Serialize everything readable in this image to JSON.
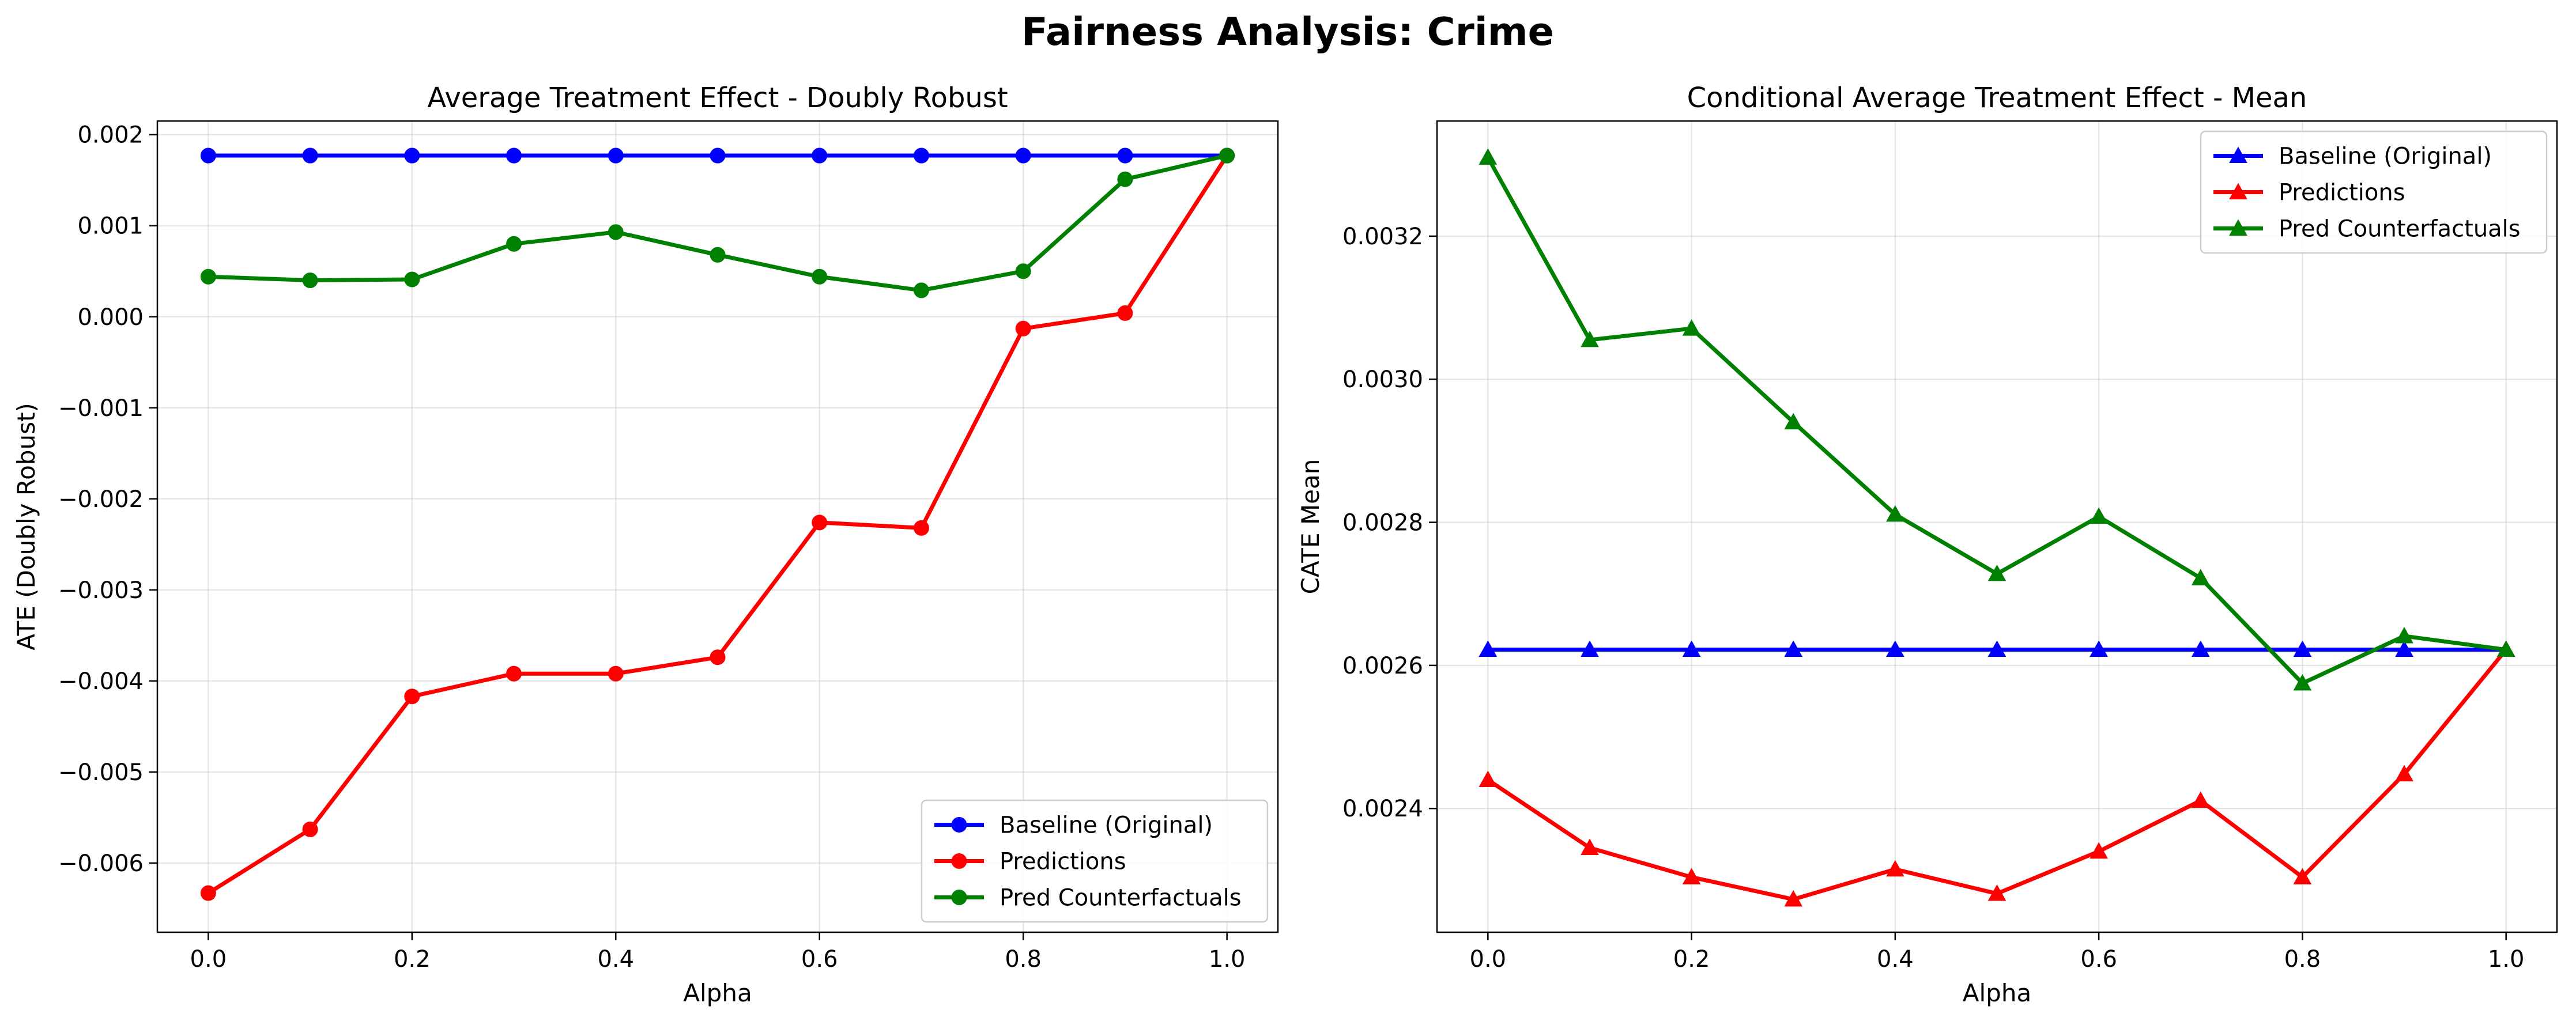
{
  "figure": {
    "title": "Fairness Analysis: Crime"
  },
  "chart_data": [
    {
      "type": "line",
      "title": "Average Treatment Effect - Doubly Robust",
      "xlabel": "Alpha",
      "ylabel": "ATE (Doubly Robust)",
      "x": [
        0.0,
        0.1,
        0.2,
        0.3,
        0.4,
        0.5,
        0.6,
        0.7,
        0.8,
        0.9,
        1.0
      ],
      "xlim": [
        -0.05,
        1.05
      ],
      "ylim": [
        -0.00676,
        0.00215
      ],
      "xticks": [
        0.0,
        0.2,
        0.4,
        0.6,
        0.8,
        1.0
      ],
      "xtick_labels": [
        "0.0",
        "0.2",
        "0.4",
        "0.6",
        "0.8",
        "1.0"
      ],
      "yticks": [
        -0.006,
        -0.005,
        -0.004,
        -0.003,
        -0.002,
        -0.001,
        0.0,
        0.001,
        0.002
      ],
      "ytick_labels": [
        "−0.006",
        "−0.005",
        "−0.004",
        "−0.003",
        "−0.002",
        "−0.001",
        "0.000",
        "0.001",
        "0.002"
      ],
      "grid": true,
      "marker": "circle",
      "legend_position": "lower-right",
      "series": [
        {
          "name": "Baseline (Original)",
          "color": "#0000ff",
          "values": [
            0.00177,
            0.00177,
            0.00177,
            0.00177,
            0.00177,
            0.00177,
            0.00177,
            0.00177,
            0.00177,
            0.00177,
            0.00177
          ]
        },
        {
          "name": "Predictions",
          "color": "#ff0000",
          "values": [
            -0.00633,
            -0.00563,
            -0.00417,
            -0.00392,
            -0.00392,
            -0.00374,
            -0.00226,
            -0.00232,
            -0.00013,
            4e-05,
            0.00177
          ]
        },
        {
          "name": "Pred Counterfactuals",
          "color": "#008000",
          "values": [
            0.00044,
            0.0004,
            0.00041,
            0.0008,
            0.00093,
            0.00068,
            0.00044,
            0.00029,
            0.0005,
            0.00151,
            0.00177
          ]
        }
      ]
    },
    {
      "type": "line",
      "title": "Conditional Average Treatment Effect - Mean",
      "xlabel": "Alpha",
      "ylabel": "CATE Mean",
      "x": [
        0.0,
        0.1,
        0.2,
        0.3,
        0.4,
        0.5,
        0.6,
        0.7,
        0.8,
        0.9,
        1.0
      ],
      "xlim": [
        -0.05,
        1.05
      ],
      "ylim": [
        0.002227,
        0.003361
      ],
      "xticks": [
        0.0,
        0.2,
        0.4,
        0.6,
        0.8,
        1.0
      ],
      "xtick_labels": [
        "0.0",
        "0.2",
        "0.4",
        "0.6",
        "0.8",
        "1.0"
      ],
      "yticks": [
        0.0024,
        0.0026,
        0.0028,
        0.003,
        0.0032
      ],
      "ytick_labels": [
        "0.0024",
        "0.0026",
        "0.0028",
        "0.0030",
        "0.0032"
      ],
      "grid": true,
      "marker": "triangle",
      "legend_position": "upper-right",
      "series": [
        {
          "name": "Baseline (Original)",
          "color": "#0000ff",
          "values": [
            0.002622,
            0.002622,
            0.002622,
            0.002622,
            0.002622,
            0.002622,
            0.002622,
            0.002622,
            0.002622,
            0.002622,
            0.002622
          ]
        },
        {
          "name": "Predictions",
          "color": "#ff0000",
          "values": [
            0.00244,
            0.002345,
            0.002304,
            0.002273,
            0.002315,
            0.002281,
            0.00234,
            0.002411,
            0.002304,
            0.002448,
            0.002622
          ]
        },
        {
          "name": "Pred Counterfactuals",
          "color": "#008000",
          "values": [
            0.00331,
            0.003055,
            0.003071,
            0.00294,
            0.002811,
            0.002728,
            0.002808,
            0.002722,
            0.002575,
            0.002641,
            0.002622
          ]
        }
      ]
    }
  ]
}
